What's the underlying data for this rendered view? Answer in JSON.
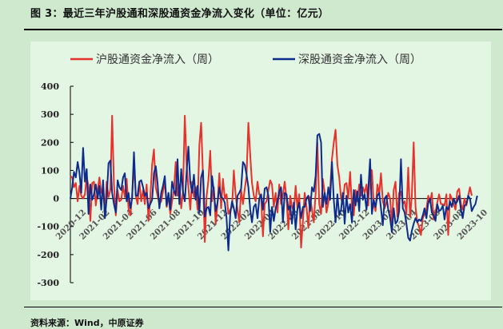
{
  "figure": {
    "title": "图 3：最近三年沪股通和深股通资金净流入变化（单位：亿元）",
    "source": "资料来源：Wind，中原证券"
  },
  "colors": {
    "sh_series": "#e8312a",
    "sz_series": "#0d2b8c",
    "panel_background": "#e3f5e3",
    "page_background": "#cfe9cf"
  },
  "chart_data": {
    "type": "line",
    "title": "",
    "xlabel": "",
    "ylabel": "",
    "ylim": [
      -300,
      400
    ],
    "yticks": [
      400,
      300,
      200,
      100,
      0,
      -100,
      -200,
      -300
    ],
    "legend_position": "top",
    "grid": false,
    "x_tick_labels": [
      "2020-12",
      "2021-02",
      "2021-04",
      "2021-06",
      "2021-08",
      "2021-10",
      "2021-12",
      "2022-02",
      "2022-04",
      "2022-06",
      "2022-08",
      "2022-10",
      "2022-12",
      "2023-02",
      "2023-04",
      "2023-06",
      "2023-08",
      "2023-10"
    ],
    "series": [
      {
        "name": "沪股通资金净流入（周）",
        "color": "#e8312a",
        "values": [
          80,
          75,
          40,
          55,
          -10,
          45,
          10,
          0,
          15,
          80,
          40,
          -80,
          55,
          60,
          -25,
          30,
          75,
          20,
          40,
          -50,
          60,
          5,
          30,
          295,
          50,
          -60,
          30,
          -10,
          -5,
          45,
          5,
          70,
          -35,
          -60,
          10,
          120,
          10,
          -20,
          60,
          -10,
          30,
          -20,
          50,
          -80,
          0,
          120,
          175,
          40,
          10,
          -20,
          -10,
          25,
          60,
          -30,
          10,
          -55,
          -10,
          30,
          130,
          10,
          50,
          -35,
          25,
          295,
          120,
          40,
          -40,
          60,
          5,
          40,
          -40,
          190,
          270,
          85,
          -155,
          10,
          65,
          170,
          -10,
          40,
          -90,
          -20,
          90,
          -35,
          70,
          0,
          15,
          -55,
          -40,
          -30,
          100,
          10,
          -40,
          -85,
          30,
          -20,
          35,
          80,
          270,
          155,
          55,
          10,
          -10,
          60,
          15,
          5,
          -135,
          -20,
          -10,
          30,
          65,
          50,
          -30,
          20,
          -50,
          50,
          -20,
          15,
          60,
          0,
          -110,
          10,
          -30,
          -45,
          45,
          -35,
          15,
          -175,
          -80,
          20,
          -30,
          -105,
          5,
          -40,
          -85,
          20,
          200,
          -20,
          -55,
          70,
          20,
          -50,
          -15,
          30,
          140,
          200,
          245,
          120,
          75,
          0,
          -20,
          50,
          55,
          0,
          95,
          -30,
          -60,
          30,
          -10,
          50,
          10,
          40,
          20,
          50,
          -25,
          105,
          100,
          -20,
          -45,
          50,
          15,
          90,
          -10,
          -35,
          -15,
          20,
          0,
          -90,
          30,
          60,
          -65,
          20,
          25,
          -20,
          -10,
          -55,
          110,
          -65,
          10,
          200,
          -30,
          -85,
          -100,
          -130,
          -70,
          -55,
          -40,
          10,
          -15,
          20,
          -75,
          -50,
          -15,
          15,
          -20,
          -20,
          -25,
          15,
          -130,
          15,
          0,
          -20,
          -40,
          25,
          35,
          -20,
          -40,
          0,
          -25,
          10,
          40,
          10
        ]
      },
      {
        "name": "深股通资金净流入（周）",
        "color": "#0d2b8c",
        "values": [
          0,
          40,
          95,
          75,
          130,
          90,
          20,
          180,
          60,
          105,
          -55,
          50,
          -5,
          15,
          50,
          0,
          45,
          -40,
          65,
          -70,
          0,
          125,
          135,
          20,
          -20,
          -50,
          65,
          40,
          30,
          75,
          90,
          -10,
          20,
          -35,
          0,
          165,
          10,
          10,
          60,
          65,
          40,
          10,
          20,
          -35,
          -20,
          -5,
          90,
          115,
          55,
          -35,
          20,
          45,
          80,
          -25,
          20,
          -40,
          60,
          30,
          10,
          140,
          -20,
          105,
          25,
          -10,
          95,
          185,
          60,
          20,
          85,
          -5,
          45,
          -50,
          75,
          100,
          -65,
          -35,
          -30,
          -60,
          80,
          25,
          -45,
          -15,
          40,
          5,
          0,
          -15,
          -70,
          -185,
          -55,
          -10,
          -35,
          -70,
          10,
          20,
          35,
          130,
          120,
          85,
          40,
          -40,
          -85,
          -30,
          -20,
          -70,
          0,
          15,
          -40,
          35,
          40,
          10,
          -120,
          -30,
          -80,
          -35,
          -10,
          25,
          40,
          -85,
          20,
          15,
          -40,
          -25,
          -90,
          -15,
          -110,
          -40,
          -15,
          -70,
          -30,
          -30,
          0,
          10,
          -45,
          40,
          25,
          80,
          225,
          230,
          200,
          -30,
          20,
          -20,
          40,
          -5,
          130,
          -5,
          -85,
          15,
          -60,
          -40,
          20,
          -90,
          10,
          -50,
          -20,
          -85,
          30,
          -25,
          25,
          -45,
          85,
          -5,
          15,
          -40,
          30,
          140,
          -55,
          -5,
          -30,
          10,
          20,
          -35,
          -95,
          0,
          10,
          -40,
          -70,
          -120,
          -35,
          -90,
          -80,
          -45,
          140,
          -35,
          -50,
          -90,
          -140,
          -150,
          -115,
          -90,
          -70,
          -85,
          -75,
          -80,
          -60,
          -35,
          -70,
          -15,
          0,
          -50,
          -60,
          -80,
          -20,
          -45,
          -40,
          -25,
          -75,
          -30,
          -40,
          -10,
          -30,
          0,
          -20,
          -10,
          10,
          -40,
          -70,
          -25,
          -20,
          10,
          0,
          -45,
          -30,
          -20,
          10
        ]
      }
    ]
  }
}
